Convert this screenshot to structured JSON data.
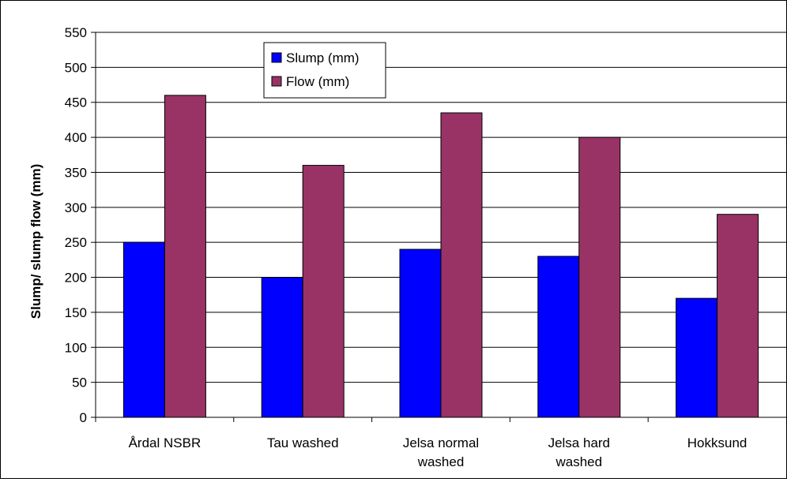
{
  "chart_data": {
    "type": "bar",
    "categories": [
      [
        "Årdal NSBR"
      ],
      [
        "Tau washed"
      ],
      [
        "Jelsa normal",
        "washed"
      ],
      [
        "Jelsa hard",
        "washed"
      ],
      [
        "Hokksund"
      ]
    ],
    "series": [
      {
        "name": "Slump (mm)",
        "color": "#0000ff",
        "values": [
          250,
          200,
          240,
          230,
          170
        ]
      },
      {
        "name": "Flow (mm)",
        "color": "#993366",
        "values": [
          460,
          360,
          435,
          400,
          290
        ]
      }
    ],
    "xlabel": "",
    "ylabel": "Slump/ slump flow (mm)",
    "ylim": [
      0,
      550
    ],
    "yticks": [
      0,
      50,
      100,
      150,
      200,
      250,
      300,
      350,
      400,
      450,
      500,
      550
    ],
    "grid": true,
    "legend_position": "top-center"
  }
}
